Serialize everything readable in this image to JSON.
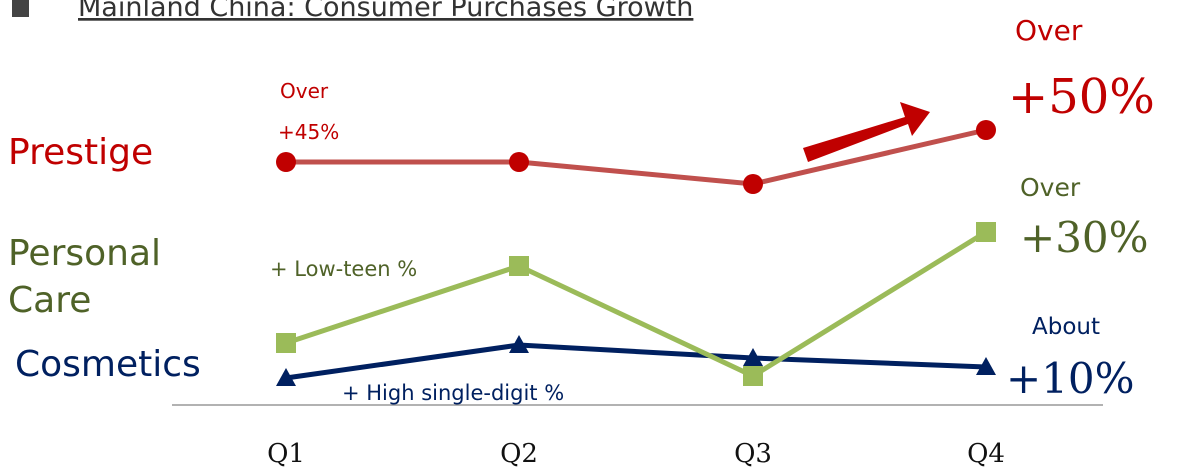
{
  "header": {
    "title": "Mainland China: Consumer Purchases Growth"
  },
  "categories": [
    "Q1",
    "Q2",
    "Q3",
    "Q4"
  ],
  "series": [
    {
      "name": "Prestige",
      "color": "#c00000"
    },
    {
      "name": "Personal Care",
      "name_lines": [
        "Personal",
        "Care"
      ],
      "color": "#4f6228"
    },
    {
      "name": "Cosmetics",
      "color": "#002060"
    }
  ],
  "annotations": {
    "prestige_q1": [
      "Over",
      "+45%"
    ],
    "prestige_q4": [
      "Over",
      "+50%"
    ],
    "personal_q2": "+ Low-teen %",
    "personal_q4": [
      "Over",
      "+30%"
    ],
    "cosmetics_q1": "+ High single-digit %",
    "cosmetics_q4": [
      "About",
      "+10%"
    ]
  }
}
